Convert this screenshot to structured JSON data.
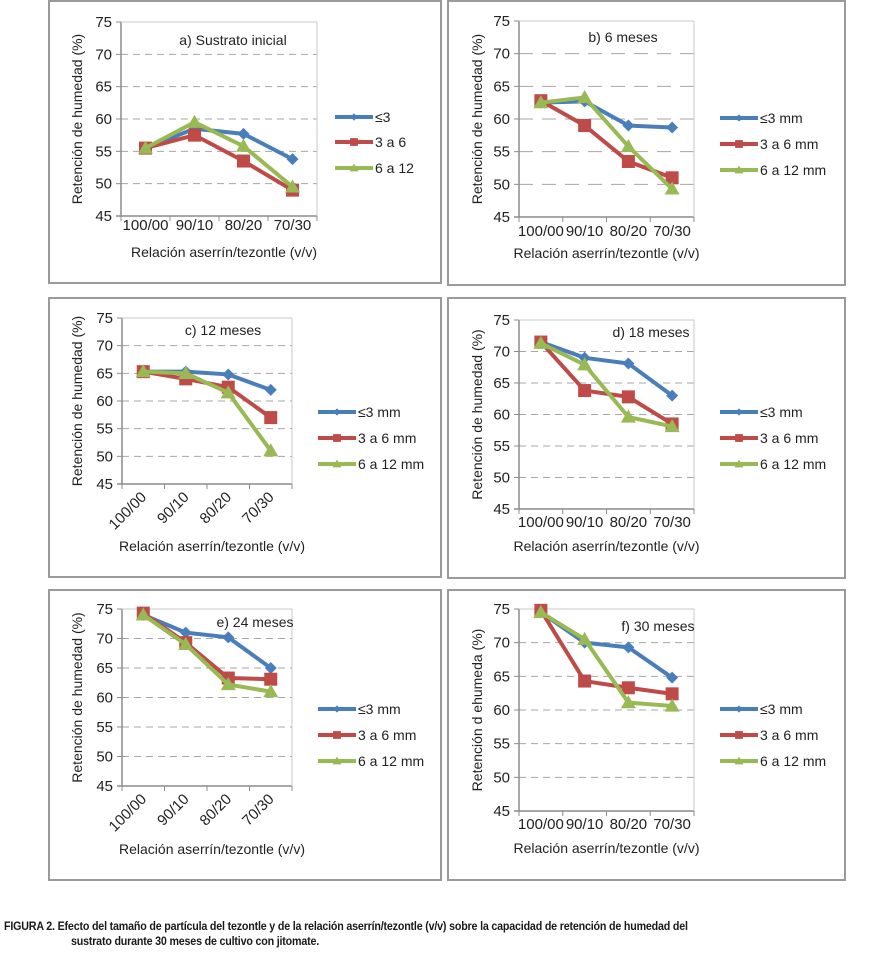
{
  "figure_caption": {
    "label": "FIGURA 2.",
    "line1": "Efecto del tamaño de partícula del tezontle y de la relación aserrín/tezontle (v/v) sobre la capacidad de retención de humedad del",
    "line2": "sustrato durante 30 meses  de cultivo con jitomate."
  },
  "colors": {
    "series1": "#4a7ebb",
    "series2": "#be4b48",
    "series3": "#98b954",
    "grid": "#a6a6a6",
    "axis": "#8c8c8c"
  },
  "chart_data": [
    {
      "id": "a",
      "type": "line",
      "title": "a) Sustrato inicial",
      "xlabel": "Relación aserrín/tezontle (v/v)",
      "ylabel": "Retención de humedad (%)",
      "categories": [
        "100/00",
        "90/10",
        "80/20",
        "70/30"
      ],
      "ylim": [
        45,
        75
      ],
      "yticks": [
        "45",
        "50",
        "55",
        "60",
        "65",
        "70",
        "75"
      ],
      "grid": true,
      "legend": "right",
      "rotated_xticks": false,
      "series": [
        {
          "name": "≤3",
          "marker": "diamond",
          "values": [
            55.5,
            58.5,
            57.7,
            53.8
          ]
        },
        {
          "name": "3 a 6",
          "marker": "square",
          "values": [
            55.5,
            57.5,
            53.5,
            49.0
          ]
        },
        {
          "name": "6 a 12",
          "marker": "triangle",
          "values": [
            55.5,
            59.5,
            55.8,
            49.5
          ]
        }
      ]
    },
    {
      "id": "b",
      "type": "line",
      "title": "b) 6 meses",
      "xlabel": "Relación aserrín/tezontle (v/v)",
      "ylabel": "Retención de humedad (%)",
      "categories": [
        "100/00",
        "90/10",
        "80/20",
        "70/30"
      ],
      "ylim": [
        45,
        75
      ],
      "yticks": [
        "45",
        "50",
        "55",
        "60",
        "65",
        "70",
        "75"
      ],
      "grid": true,
      "legend": "right",
      "rotated_xticks": false,
      "series": [
        {
          "name": "≤3 mm",
          "marker": "diamond",
          "values": [
            62.5,
            62.7,
            59.0,
            58.7
          ]
        },
        {
          "name": "3 a 6 mm",
          "marker": "square",
          "values": [
            62.8,
            59.0,
            53.5,
            51.0
          ]
        },
        {
          "name": "6 a 12 mm",
          "marker": "triangle",
          "values": [
            62.5,
            63.3,
            55.8,
            49.3
          ]
        }
      ]
    },
    {
      "id": "c",
      "type": "line",
      "title": "c) 12 meses",
      "xlabel": "Relación aserrín/tezontle (v/v)",
      "ylabel": "Retención de humedad (%)",
      "categories": [
        "100/00",
        "90/10",
        "80/20",
        "70/30"
      ],
      "ylim": [
        45,
        75
      ],
      "yticks": [
        "45",
        "50",
        "55",
        "60",
        "65",
        "70",
        "75"
      ],
      "grid": true,
      "legend": "right",
      "rotated_xticks": true,
      "series": [
        {
          "name": "≤3 mm",
          "marker": "diamond",
          "values": [
            65.3,
            65.3,
            64.8,
            62.0
          ]
        },
        {
          "name": "3 a 6 mm",
          "marker": "square",
          "values": [
            65.3,
            64.0,
            62.5,
            57.0
          ]
        },
        {
          "name": "6 a 12 mm",
          "marker": "triangle",
          "values": [
            65.3,
            65.0,
            61.5,
            51.0
          ]
        }
      ]
    },
    {
      "id": "d",
      "type": "line",
      "title": "d) 18 meses",
      "xlabel": "Relación aserrín/tezontle (v/v)",
      "ylabel": "Retención de humedad (%)",
      "categories": [
        "100/00",
        "90/10",
        "80/20",
        "70/30"
      ],
      "ylim": [
        45,
        75
      ],
      "yticks": [
        "45",
        "50",
        "55",
        "60",
        "65",
        "70",
        "75"
      ],
      "grid": true,
      "legend": "right",
      "rotated_xticks": false,
      "series": [
        {
          "name": "≤3 mm",
          "marker": "diamond",
          "values": [
            71.5,
            69.0,
            68.1,
            63.0
          ]
        },
        {
          "name": "3 a 6 mm",
          "marker": "square",
          "values": [
            71.5,
            63.8,
            62.8,
            58.5
          ]
        },
        {
          "name": "6 a 12 mm",
          "marker": "triangle",
          "values": [
            71.3,
            67.9,
            59.6,
            58.1
          ]
        }
      ]
    },
    {
      "id": "e",
      "type": "line",
      "title": "e) 24 meses",
      "xlabel": "Relación aserrín/tezontle (v/v)",
      "ylabel": "Retención de humedad (%)",
      "categories": [
        "100/00",
        "90/10",
        "80/20",
        "70/30"
      ],
      "ylim": [
        45,
        75
      ],
      "yticks": [
        "45",
        "50",
        "55",
        "60",
        "65",
        "70",
        "75"
      ],
      "grid": true,
      "legend": "right",
      "rotated_xticks": true,
      "series": [
        {
          "name": "≤3 mm",
          "marker": "diamond",
          "values": [
            74.0,
            71.0,
            70.2,
            65.0
          ]
        },
        {
          "name": "3 a 6 mm",
          "marker": "square",
          "values": [
            74.3,
            69.3,
            63.3,
            63.1
          ]
        },
        {
          "name": "6 a 12 mm",
          "marker": "triangle",
          "values": [
            74.0,
            69.0,
            62.2,
            61.0
          ]
        }
      ]
    },
    {
      "id": "f",
      "type": "line",
      "title": "f) 30 meses",
      "xlabel": "Relación aserrín/tezontle (v/v)",
      "ylabel": "Retención d ehumeda (%)",
      "categories": [
        "100/00",
        "90/10",
        "80/20",
        "70/30"
      ],
      "ylim": [
        45,
        75
      ],
      "yticks": [
        "45",
        "50",
        "55",
        "60",
        "65",
        "70",
        "75"
      ],
      "grid": true,
      "legend": "right",
      "rotated_xticks": false,
      "series": [
        {
          "name": "≤3 mm",
          "marker": "diamond",
          "values": [
            74.5,
            70.0,
            69.3,
            64.8
          ]
        },
        {
          "name": "3 a 6 mm",
          "marker": "square",
          "values": [
            74.8,
            64.3,
            63.3,
            62.4
          ]
        },
        {
          "name": "6 a 12 mm",
          "marker": "triangle",
          "values": [
            74.5,
            70.5,
            61.1,
            60.6
          ]
        }
      ]
    }
  ]
}
